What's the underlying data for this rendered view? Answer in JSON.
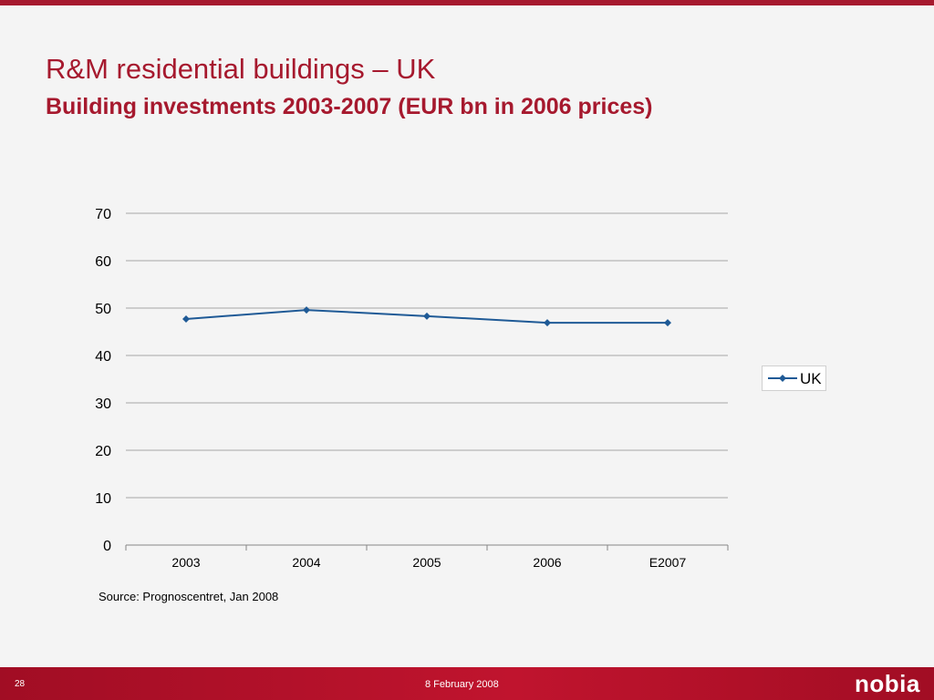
{
  "slide": {
    "title": "R&M residential buildings – UK",
    "subtitle": "Building investments 2003-2007 (EUR bn in 2006 prices)",
    "source": "Source: Prognoscentret, Jan 2008",
    "page_number": "28",
    "date": "8 February 2008",
    "logo_text": "nobia"
  },
  "colors": {
    "brand": "#a6192e",
    "series": "#1f5a96",
    "grid": "#a6a6a6"
  },
  "chart_data": {
    "type": "line",
    "title": "",
    "xlabel": "",
    "ylabel": "",
    "categories": [
      "2003",
      "2004",
      "2005",
      "2006",
      "E2007"
    ],
    "series": [
      {
        "name": "UK",
        "values": [
          47.7,
          49.6,
          48.3,
          46.9,
          46.9
        ],
        "marker": "diamond"
      }
    ],
    "ylim": [
      0,
      70
    ],
    "yticks": [
      0,
      10,
      20,
      30,
      40,
      50,
      60,
      70
    ],
    "grid": "horizontal",
    "legend": "right"
  }
}
